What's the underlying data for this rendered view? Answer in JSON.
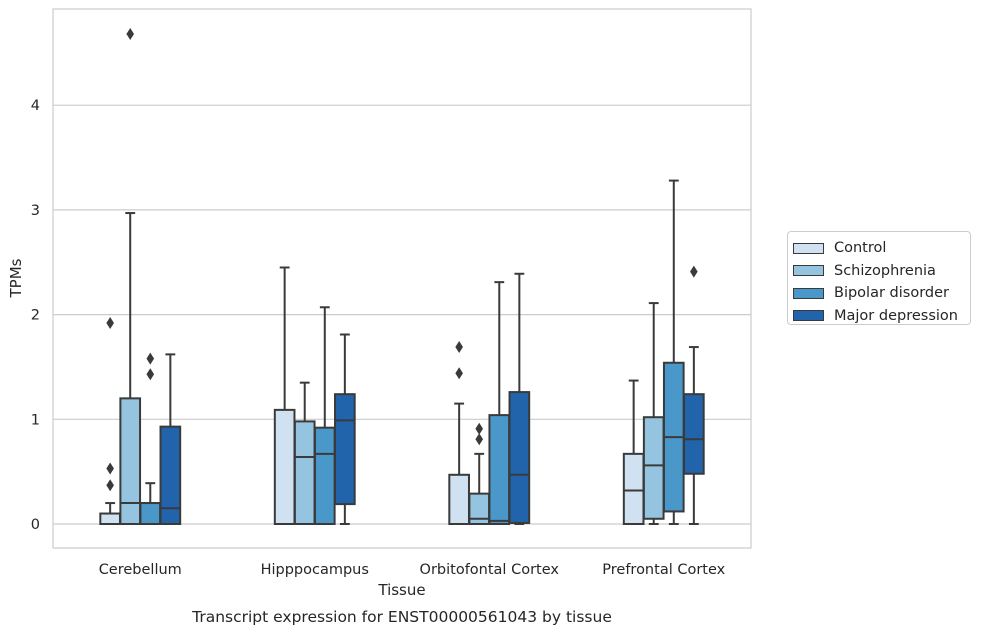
{
  "chart_data": {
    "type": "boxplot",
    "title": "Transcript expression for ENST00000561043 by tissue",
    "xlabel": "Tissue",
    "ylabel": "TPMs",
    "ylim": [
      -0.23,
      4.88
    ],
    "yticks": [
      0,
      1,
      2,
      3,
      4
    ],
    "grid": true,
    "legend_position": "right",
    "categories": [
      "Cerebellum",
      "Hipppocampus",
      "Orbitofontal Cortex",
      "Prefrontal Cortex"
    ],
    "series": [
      {
        "name": "Control",
        "color": "#d0e1f2",
        "boxes": [
          {
            "q1": 0,
            "median": 0.0,
            "q3": 0.1,
            "whisker_low": 0,
            "whisker_high": 0.2,
            "outliers": [
              0.37,
              0.53,
              1.92
            ]
          },
          {
            "q1": 0,
            "median": 0.0,
            "q3": 1.09,
            "whisker_low": 0,
            "whisker_high": 2.45,
            "outliers": []
          },
          {
            "q1": 0,
            "median": 0.0,
            "q3": 0.47,
            "whisker_low": 0,
            "whisker_high": 1.15,
            "outliers": [
              1.44,
              1.69
            ]
          },
          {
            "q1": 0,
            "median": 0.32,
            "q3": 0.67,
            "whisker_low": 0,
            "whisker_high": 1.37,
            "outliers": []
          }
        ]
      },
      {
        "name": "Schizophrenia",
        "color": "#94c4df",
        "boxes": [
          {
            "q1": 0,
            "median": 0.2,
            "q3": 1.2,
            "whisker_low": 0,
            "whisker_high": 2.97,
            "outliers": [
              4.68
            ]
          },
          {
            "q1": 0,
            "median": 0.64,
            "q3": 0.98,
            "whisker_low": 0,
            "whisker_high": 1.35,
            "outliers": []
          },
          {
            "q1": 0,
            "median": 0.05,
            "q3": 0.29,
            "whisker_low": 0,
            "whisker_high": 0.67,
            "outliers": [
              0.81,
              0.91
            ]
          },
          {
            "q1": 0.05,
            "median": 0.56,
            "q3": 1.02,
            "whisker_low": 0,
            "whisker_high": 2.11,
            "outliers": []
          }
        ]
      },
      {
        "name": "Bipolar disorder",
        "color": "#4a98c9",
        "boxes": [
          {
            "q1": 0,
            "median": 0.2,
            "q3": 0.2,
            "whisker_low": 0,
            "whisker_high": 0.39,
            "outliers": [
              1.43,
              1.58
            ]
          },
          {
            "q1": 0,
            "median": 0.67,
            "q3": 0.92,
            "whisker_low": 0,
            "whisker_high": 2.07,
            "outliers": []
          },
          {
            "q1": 0,
            "median": 0.03,
            "q3": 1.04,
            "whisker_low": 0,
            "whisker_high": 2.31,
            "outliers": []
          },
          {
            "q1": 0.12,
            "median": 0.83,
            "q3": 1.54,
            "whisker_low": 0,
            "whisker_high": 3.28,
            "outliers": []
          }
        ]
      },
      {
        "name": "Major depression",
        "color": "#2164ab",
        "boxes": [
          {
            "q1": 0,
            "median": 0.15,
            "q3": 0.93,
            "whisker_low": 0,
            "whisker_high": 1.62,
            "outliers": []
          },
          {
            "q1": 0.19,
            "median": 0.99,
            "q3": 1.24,
            "whisker_low": 0,
            "whisker_high": 1.81,
            "outliers": []
          },
          {
            "q1": 0.01,
            "median": 0.47,
            "q3": 1.26,
            "whisker_low": 0,
            "whisker_high": 2.39,
            "outliers": []
          },
          {
            "q1": 0.48,
            "median": 0.81,
            "q3": 1.24,
            "whisker_low": 0,
            "whisker_high": 1.69,
            "outliers": [
              2.41
            ]
          }
        ]
      }
    ]
  }
}
